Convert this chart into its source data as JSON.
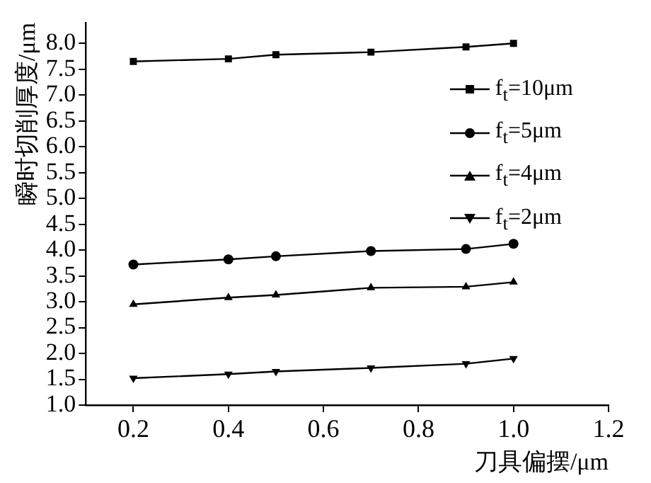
{
  "chart_data": {
    "type": "line",
    "xlabel": "刀具偏摆/μm",
    "ylabel": "瞬时切削厚度/μm",
    "x": [
      0.2,
      0.4,
      0.5,
      0.7,
      0.9,
      1.0
    ],
    "series": [
      {
        "name": "f$_{t}$=10μm",
        "color": "#000000",
        "marker": "square",
        "values": [
          7.65,
          7.7,
          7.78,
          7.83,
          7.93,
          8.0
        ]
      },
      {
        "name": "f$_{t}$=5μm",
        "color": "#000000",
        "marker": "circle",
        "values": [
          3.72,
          3.82,
          3.88,
          3.98,
          4.02,
          4.12
        ]
      },
      {
        "name": "f$_{t}$=4μm",
        "color": "#000000",
        "marker": "triangle",
        "values": [
          2.95,
          3.08,
          3.13,
          3.27,
          3.29,
          3.38
        ]
      },
      {
        "name": "f$_{t}$=2μm",
        "color": "#000000",
        "marker": "triangle_down",
        "values": [
          1.52,
          1.6,
          1.65,
          1.72,
          1.8,
          1.9
        ]
      }
    ],
    "xlim": [
      0.1,
      1.2
    ],
    "xticks": [
      0.2,
      0.4,
      0.6,
      0.8,
      {
        "value": 1.0,
        "label": "1.0"
      },
      1.2
    ],
    "ylim": [
      1.0,
      8.4
    ],
    "yticks": [
      {
        "value": 1.0,
        "label": "1.0"
      },
      1.5,
      {
        "value": 2.0,
        "label": "2.0"
      },
      2.5,
      {
        "value": 3.0,
        "label": "3.0"
      },
      3.5,
      {
        "value": 4.0,
        "label": "4.0"
      },
      4.5,
      {
        "value": 5.0,
        "label": "5.0"
      },
      5.5,
      {
        "value": 6.0,
        "label": "6.0"
      },
      6.5,
      {
        "value": 7.0,
        "label": "7.0"
      },
      7.5,
      {
        "value": 8.0,
        "label": "8.0"
      }
    ],
    "grid": false,
    "legend": "top right",
    "line_style": "solid"
  }
}
